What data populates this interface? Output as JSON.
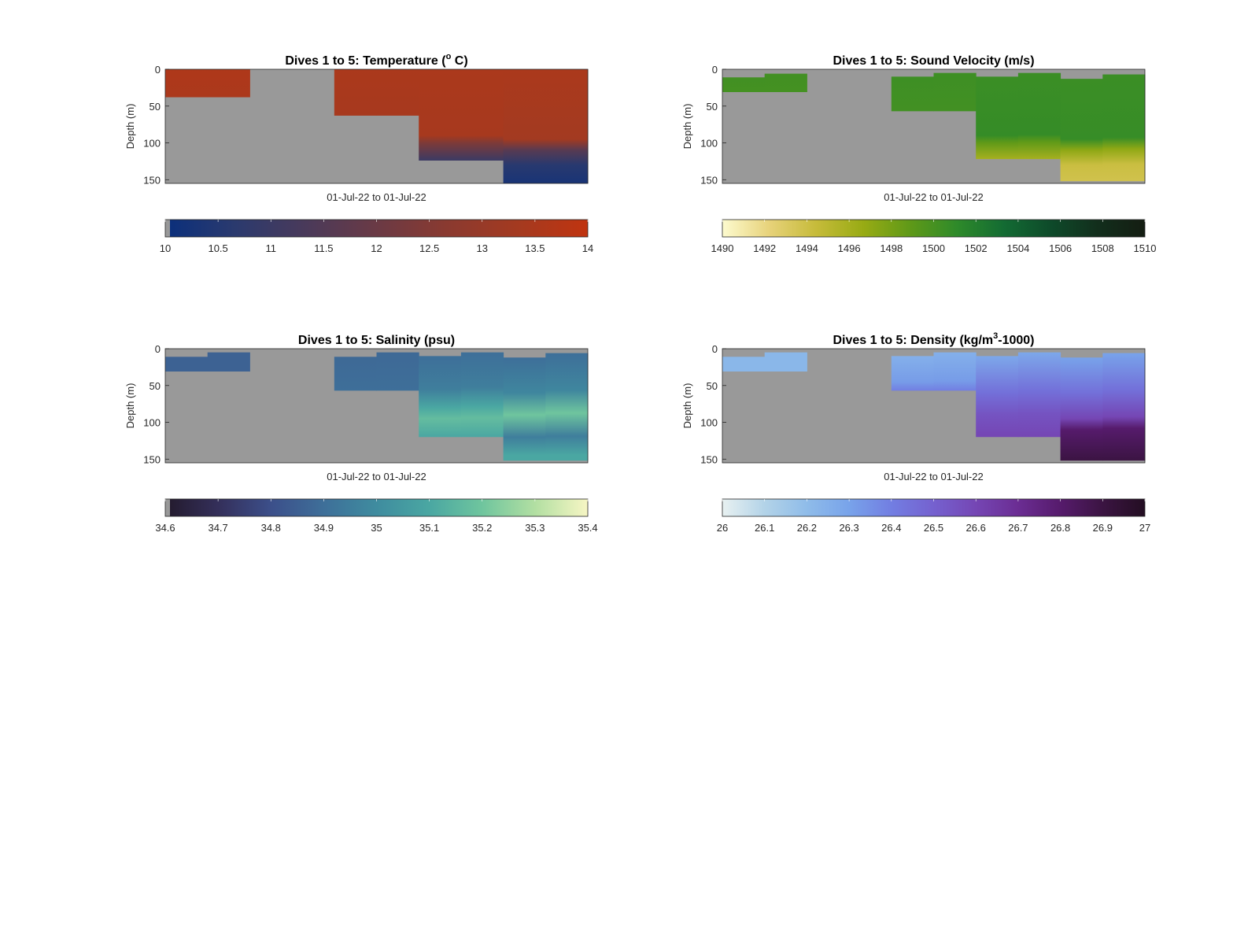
{
  "chart_data": [
    {
      "type": "heatmap",
      "id": "temp",
      "title": {
        "prefix": "Dives 1 to 5: Temperature (",
        "sup": "o",
        "suffix": " C)"
      },
      "xlabel": "01-Jul-22 to 01-Jul-22",
      "ylabel": "Depth (m)",
      "ylim": [
        0,
        155
      ],
      "yticks": [
        "0",
        "50",
        "100",
        "150"
      ],
      "ytick_values": [
        0,
        50,
        100,
        150
      ],
      "nodata_color": "#999999",
      "colorbar": {
        "min": 10,
        "max": 14,
        "ticks": [
          "10",
          "10.5",
          "11",
          "11.5",
          "12",
          "12.5",
          "13",
          "13.5",
          "14"
        ],
        "tick_values": [
          10,
          10.5,
          11,
          11.5,
          12,
          12.5,
          13,
          13.5,
          14
        ],
        "colormap": [
          "#0a2f7c",
          "#2b3a6e",
          "#4a3a5a",
          "#6a3a45",
          "#8a3a30",
          "#a43a20",
          "#c03410"
        ],
        "nodata_swatch": true
      },
      "profiles": [
        {
          "top": 0,
          "bottom": 38,
          "color_stops": [
            [
              0,
              13.6
            ],
            [
              38,
              13.5
            ]
          ]
        },
        {
          "top": 0,
          "bottom": 0,
          "color_stops": []
        },
        {
          "top": 0,
          "bottom": 63,
          "color_stops": [
            [
              0,
              13.5
            ],
            [
              63,
              13.4
            ]
          ]
        },
        {
          "top": 0,
          "bottom": 124,
          "color_stops": [
            [
              0,
              13.5
            ],
            [
              90,
              13.4
            ],
            [
              100,
              12.4
            ],
            [
              124,
              11.0
            ]
          ]
        },
        {
          "top": 0,
          "bottom": 155,
          "color_stops": [
            [
              0,
              13.5
            ],
            [
              95,
              13.3
            ],
            [
              110,
              11.6
            ],
            [
              130,
              10.6
            ],
            [
              155,
              10.3
            ]
          ]
        }
      ]
    },
    {
      "type": "heatmap",
      "id": "sv",
      "title": {
        "prefix": "Dives 1 to 5: Sound Velocity (m/s)",
        "sup": "",
        "suffix": ""
      },
      "xlabel": "01-Jul-22 to 01-Jul-22",
      "ylabel": "Depth (m)",
      "ylim": [
        0,
        155
      ],
      "yticks": [
        "0",
        "50",
        "100",
        "150"
      ],
      "ytick_values": [
        0,
        50,
        100,
        150
      ],
      "nodata_color": "#999999",
      "colorbar": {
        "min": 1490,
        "max": 1510,
        "ticks": [
          "1490",
          "1492",
          "1494",
          "1496",
          "1498",
          "1500",
          "1502",
          "1504",
          "1506",
          "1508",
          "1510"
        ],
        "tick_values": [
          1490,
          1492,
          1494,
          1496,
          1498,
          1500,
          1502,
          1504,
          1506,
          1508,
          1510
        ],
        "colormap": [
          "#fdfbcf",
          "#e7d27a",
          "#c6bb3a",
          "#98ab14",
          "#5f9918",
          "#2e8a2a",
          "#136b33",
          "#0e4a2a",
          "#122e1c",
          "#141d12"
        ],
        "nodata_swatch": false
      },
      "profiles": [
        {
          "top": 11,
          "bottom": 31,
          "color_stops": [
            [
              11,
              1500.2
            ],
            [
              31,
              1500.1
            ]
          ],
          "top2": 6
        },
        {
          "top": 0,
          "bottom": 0,
          "color_stops": []
        },
        {
          "top": 10,
          "bottom": 57,
          "color_stops": [
            [
              10,
              1500.4
            ],
            [
              57,
              1500.2
            ]
          ],
          "top2": 5
        },
        {
          "top": 10,
          "bottom": 122,
          "color_stops": [
            [
              10,
              1500.5
            ],
            [
              90,
              1500.8
            ],
            [
              100,
              1498.8
            ],
            [
              122,
              1496.0
            ]
          ],
          "top2": 5
        },
        {
          "top": 13,
          "bottom": 152,
          "color_stops": [
            [
              13,
              1500.5
            ],
            [
              95,
              1500.7
            ],
            [
              110,
              1497.0
            ],
            [
              130,
              1494.2
            ],
            [
              152,
              1493.8
            ]
          ],
          "top2": 7
        }
      ]
    },
    {
      "type": "heatmap",
      "id": "sal",
      "title": {
        "prefix": "Dives 1 to 5: Salinity (psu)",
        "sup": "",
        "suffix": ""
      },
      "xlabel": "01-Jul-22 to 01-Jul-22",
      "ylabel": "Depth (m)",
      "ylim": [
        0,
        155
      ],
      "yticks": [
        "0",
        "50",
        "100",
        "150"
      ],
      "ytick_values": [
        0,
        50,
        100,
        150
      ],
      "nodata_color": "#999999",
      "colorbar": {
        "min": 34.6,
        "max": 35.4,
        "ticks": [
          "34.6",
          "34.7",
          "34.8",
          "34.9",
          "35",
          "35.1",
          "35.2",
          "35.3",
          "35.4"
        ],
        "tick_values": [
          34.6,
          34.7,
          34.8,
          34.9,
          35.0,
          35.1,
          35.2,
          35.3,
          35.4
        ],
        "colormap": [
          "#231a2c",
          "#342f5a",
          "#3c4f8a",
          "#3e6f99",
          "#3f8c9f",
          "#4aa7a2",
          "#6fc59e",
          "#b2dfa2",
          "#f7f6c4"
        ],
        "nodata_swatch": true
      },
      "profiles": [
        {
          "top": 11,
          "bottom": 31,
          "color_stops": [
            [
              11,
              34.86
            ],
            [
              31,
              34.86
            ]
          ],
          "top2": 5
        },
        {
          "top": 0,
          "bottom": 0,
          "color_stops": []
        },
        {
          "top": 11,
          "bottom": 57,
          "color_stops": [
            [
              11,
              34.88
            ],
            [
              57,
              34.9
            ]
          ],
          "top2": 5
        },
        {
          "top": 10,
          "bottom": 120,
          "color_stops": [
            [
              10,
              34.9
            ],
            [
              55,
              34.95
            ],
            [
              80,
              35.1
            ],
            [
              95,
              35.17
            ],
            [
              120,
              35.1
            ]
          ],
          "top2": 5
        },
        {
          "top": 12,
          "bottom": 152,
          "color_stops": [
            [
              12,
              34.9
            ],
            [
              60,
              34.98
            ],
            [
              90,
              35.2
            ],
            [
              120,
              34.95
            ],
            [
              145,
              35.1
            ],
            [
              152,
              35.1
            ]
          ],
          "top2": 6
        }
      ]
    },
    {
      "type": "heatmap",
      "id": "dens",
      "title": {
        "prefix": "Dives 1 to 5: Density (kg/m",
        "sup": "3",
        "suffix": "-1000)"
      },
      "xlabel": "01-Jul-22 to 01-Jul-22",
      "ylabel": "Depth (m)",
      "ylim": [
        0,
        155
      ],
      "yticks": [
        "0",
        "50",
        "100",
        "150"
      ],
      "ytick_values": [
        0,
        50,
        100,
        150
      ],
      "nodata_color": "#999999",
      "colorbar": {
        "min": 26,
        "max": 27,
        "ticks": [
          "26",
          "26.1",
          "26.2",
          "26.3",
          "26.4",
          "26.5",
          "26.6",
          "26.7",
          "26.8",
          "26.9",
          "27"
        ],
        "tick_values": [
          26,
          26.1,
          26.2,
          26.3,
          26.4,
          26.5,
          26.6,
          26.7,
          26.8,
          26.9,
          27
        ],
        "colormap": [
          "#e8f1f1",
          "#b3d3e8",
          "#8fbce9",
          "#78a3ea",
          "#727ee2",
          "#7561cf",
          "#7546b4",
          "#6b2d93",
          "#561b6c",
          "#3b1442",
          "#230e22"
        ],
        "nodata_swatch": false
      },
      "profiles": [
        {
          "top": 11,
          "bottom": 31,
          "color_stops": [
            [
              11,
              26.22
            ],
            [
              31,
              26.22
            ]
          ],
          "top2": 5
        },
        {
          "top": 0,
          "bottom": 0,
          "color_stops": []
        },
        {
          "top": 10,
          "bottom": 57,
          "color_stops": [
            [
              10,
              26.25
            ],
            [
              45,
              26.32
            ],
            [
              57,
              26.4
            ]
          ],
          "top2": 5
        },
        {
          "top": 10,
          "bottom": 120,
          "color_stops": [
            [
              10,
              26.28
            ],
            [
              60,
              26.45
            ],
            [
              90,
              26.55
            ],
            [
              120,
              26.6
            ]
          ],
          "top2": 5
        },
        {
          "top": 12,
          "bottom": 152,
          "color_stops": [
            [
              12,
              26.3
            ],
            [
              60,
              26.45
            ],
            [
              95,
              26.6
            ],
            [
              110,
              26.8
            ],
            [
              152,
              26.9
            ]
          ],
          "top2": 6
        }
      ]
    }
  ]
}
